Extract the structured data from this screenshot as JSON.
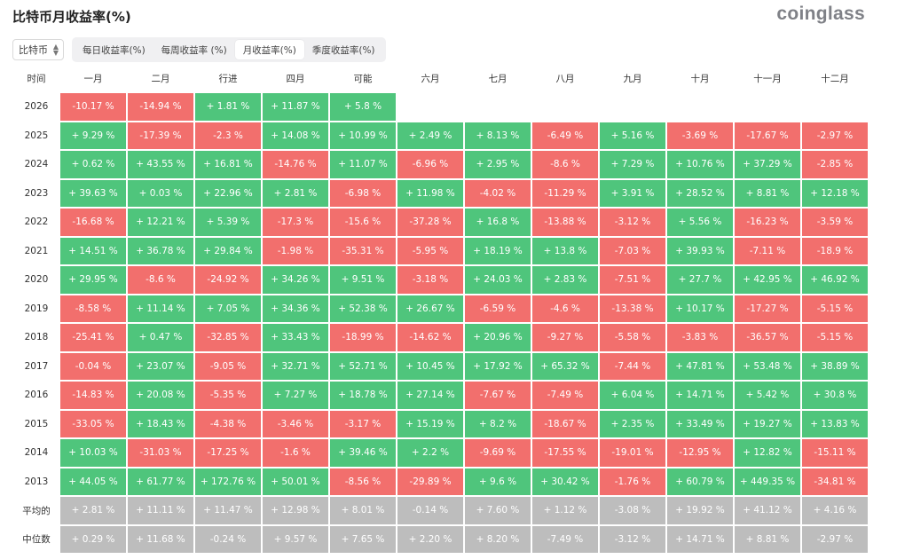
{
  "title": "比特币月收益率(%)",
  "brand": "coinglass",
  "coin_select": {
    "value": "比特币",
    "icon": "up-down-chevron-icon"
  },
  "tabs": [
    {
      "label": "每日收益率(%)",
      "active": false
    },
    {
      "label": "每周收益率 (%)",
      "active": false
    },
    {
      "label": "月收益率(%)",
      "active": true
    },
    {
      "label": "季度收益率(%)",
      "active": false
    }
  ],
  "colors": {
    "positive": "#4fc57c",
    "negative": "#f26f6d",
    "summary": "#bdbdbd"
  },
  "table": {
    "corner": "时间",
    "months": [
      "一月",
      "二月",
      "行进",
      "四月",
      "可能",
      "六月",
      "七月",
      "八月",
      "九月",
      "十月",
      "十一月",
      "十二月"
    ],
    "rows": [
      {
        "year": "2026",
        "cells": [
          "-10.17 %",
          "-14.94 %",
          "+ 1.81 %",
          "+ 11.87 %",
          "+ 5.8 %"
        ]
      },
      {
        "year": "2025",
        "cells": [
          "+ 9.29 %",
          "-17.39 %",
          "-2.3 %",
          "+ 14.08 %",
          "+ 10.99 %",
          "+ 2.49 %",
          "+ 8.13 %",
          "-6.49 %",
          "+ 5.16 %",
          "-3.69 %",
          "-17.67 %",
          "-2.97 %"
        ]
      },
      {
        "year": "2024",
        "cells": [
          "+ 0.62 %",
          "+ 43.55 %",
          "+ 16.81 %",
          "-14.76 %",
          "+ 11.07 %",
          "-6.96 %",
          "+ 2.95 %",
          "-8.6 %",
          "+ 7.29 %",
          "+ 10.76 %",
          "+ 37.29 %",
          "-2.85 %"
        ]
      },
      {
        "year": "2023",
        "cells": [
          "+ 39.63 %",
          "+ 0.03 %",
          "+ 22.96 %",
          "+ 2.81 %",
          "-6.98 %",
          "+ 11.98 %",
          "-4.02 %",
          "-11.29 %",
          "+ 3.91 %",
          "+ 28.52 %",
          "+ 8.81 %",
          "+ 12.18 %"
        ]
      },
      {
        "year": "2022",
        "cells": [
          "-16.68 %",
          "+ 12.21 %",
          "+ 5.39 %",
          "-17.3 %",
          "-15.6 %",
          "-37.28 %",
          "+ 16.8 %",
          "-13.88 %",
          "-3.12 %",
          "+ 5.56 %",
          "-16.23 %",
          "-3.59 %"
        ]
      },
      {
        "year": "2021",
        "cells": [
          "+ 14.51 %",
          "+ 36.78 %",
          "+ 29.84 %",
          "-1.98 %",
          "-35.31 %",
          "-5.95 %",
          "+ 18.19 %",
          "+ 13.8 %",
          "-7.03 %",
          "+ 39.93 %",
          "-7.11 %",
          "-18.9 %"
        ]
      },
      {
        "year": "2020",
        "cells": [
          "+ 29.95 %",
          "-8.6 %",
          "-24.92 %",
          "+ 34.26 %",
          "+ 9.51 %",
          "-3.18 %",
          "+ 24.03 %",
          "+ 2.83 %",
          "-7.51 %",
          "+ 27.7 %",
          "+ 42.95 %",
          "+ 46.92 %"
        ]
      },
      {
        "year": "2019",
        "cells": [
          "-8.58 %",
          "+ 11.14 %",
          "+ 7.05 %",
          "+ 34.36 %",
          "+ 52.38 %",
          "+ 26.67 %",
          "-6.59 %",
          "-4.6 %",
          "-13.38 %",
          "+ 10.17 %",
          "-17.27 %",
          "-5.15 %"
        ]
      },
      {
        "year": "2018",
        "cells": [
          "-25.41 %",
          "+ 0.47 %",
          "-32.85 %",
          "+ 33.43 %",
          "-18.99 %",
          "-14.62 %",
          "+ 20.96 %",
          "-9.27 %",
          "-5.58 %",
          "-3.83 %",
          "-36.57 %",
          "-5.15 %"
        ]
      },
      {
        "year": "2017",
        "cells": [
          "-0.04 %",
          "+ 23.07 %",
          "-9.05 %",
          "+ 32.71 %",
          "+ 52.71 %",
          "+ 10.45 %",
          "+ 17.92 %",
          "+ 65.32 %",
          "-7.44 %",
          "+ 47.81 %",
          "+ 53.48 %",
          "+ 38.89 %"
        ]
      },
      {
        "year": "2016",
        "cells": [
          "-14.83 %",
          "+ 20.08 %",
          "-5.35 %",
          "+ 7.27 %",
          "+ 18.78 %",
          "+ 27.14 %",
          "-7.67 %",
          "-7.49 %",
          "+ 6.04 %",
          "+ 14.71 %",
          "+ 5.42 %",
          "+ 30.8 %"
        ]
      },
      {
        "year": "2015",
        "cells": [
          "-33.05 %",
          "+ 18.43 %",
          "-4.38 %",
          "-3.46 %",
          "-3.17 %",
          "+ 15.19 %",
          "+ 8.2 %",
          "-18.67 %",
          "+ 2.35 %",
          "+ 33.49 %",
          "+ 19.27 %",
          "+ 13.83 %"
        ]
      },
      {
        "year": "2014",
        "cells": [
          "+ 10.03 %",
          "-31.03 %",
          "-17.25 %",
          "-1.6 %",
          "+ 39.46 %",
          "+ 2.2 %",
          "-9.69 %",
          "-17.55 %",
          "-19.01 %",
          "-12.95 %",
          "+ 12.82 %",
          "-15.11 %"
        ]
      },
      {
        "year": "2013",
        "cells": [
          "+ 44.05 %",
          "+ 61.77 %",
          "+ 172.76 %",
          "+ 50.01 %",
          "-8.56 %",
          "-29.89 %",
          "+ 9.6 %",
          "+ 30.42 %",
          "-1.76 %",
          "+ 60.79 %",
          "+ 449.35 %",
          "-34.81 %"
        ]
      }
    ],
    "summary": [
      {
        "label": "平均的",
        "cells": [
          "+ 2.81 %",
          "+ 11.11 %",
          "+ 11.47 %",
          "+ 12.98 %",
          "+ 8.01 %",
          "-0.14 %",
          "+ 7.60 %",
          "+ 1.12 %",
          "-3.08 %",
          "+ 19.92 %",
          "+ 41.12 %",
          "+ 4.16 %"
        ]
      },
      {
        "label": "中位数",
        "cells": [
          "+ 0.29 %",
          "+ 11.68 %",
          "-0.24 %",
          "+ 9.57 %",
          "+ 7.65 %",
          "+ 2.20 %",
          "+ 8.20 %",
          "-7.49 %",
          "-3.12 %",
          "+ 14.71 %",
          "+ 8.81 %",
          "-2.97 %"
        ]
      }
    ]
  }
}
